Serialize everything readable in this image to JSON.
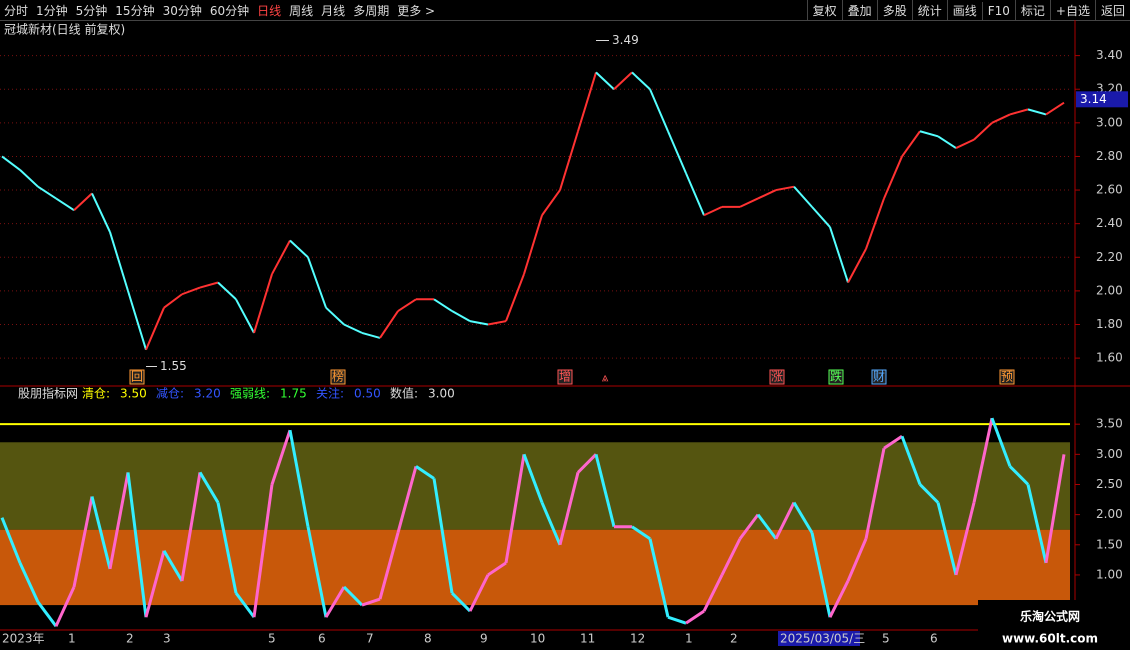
{
  "toolbar": {
    "left": [
      "分时",
      "1分钟",
      "5分钟",
      "15分钟",
      "30分钟",
      "60分钟",
      "日线",
      "周线",
      "月线",
      "多周期",
      "更多 >"
    ],
    "right": [
      "复权",
      "叠加",
      "多股",
      "统计",
      "画线",
      "F10",
      "标记",
      "+自选",
      "返回"
    ]
  },
  "chart_data": [
    {
      "type": "line",
      "title": "冠城新材(日线 前复权)",
      "ylim": [
        1.44,
        3.6
      ],
      "yticks": [
        {
          "value": 1.6,
          "label": "1.60"
        },
        {
          "value": 1.8,
          "label": "1.80"
        },
        {
          "value": 2.0,
          "label": "2.00"
        },
        {
          "value": 2.2,
          "label": "2.20"
        },
        {
          "value": 2.4,
          "label": "2.40"
        },
        {
          "value": 2.6,
          "label": "2.60"
        },
        {
          "value": 2.8,
          "label": "2.80"
        },
        {
          "value": 3.0,
          "label": "3.00"
        },
        {
          "value": 3.2,
          "label": "3.20"
        },
        {
          "value": 3.4,
          "label": "3.40"
        }
      ],
      "up_color": "#ff3232",
      "down_color": "#54ffff",
      "values": [
        2.8,
        2.72,
        2.62,
        2.55,
        2.48,
        2.58,
        2.35,
        2.0,
        1.65,
        1.9,
        1.98,
        2.02,
        2.05,
        1.95,
        1.75,
        2.1,
        2.3,
        2.2,
        1.9,
        1.8,
        1.75,
        1.72,
        1.88,
        1.95,
        1.95,
        1.88,
        1.82,
        1.8,
        1.82,
        2.1,
        2.45,
        2.6,
        2.95,
        3.3,
        3.2,
        3.3,
        3.2,
        2.95,
        2.7,
        2.45,
        2.5,
        2.5,
        2.55,
        2.6,
        2.62,
        2.5,
        2.38,
        2.05,
        2.25,
        2.55,
        2.8,
        2.95,
        2.92,
        2.85,
        2.9,
        3.0,
        3.05,
        3.08,
        3.05,
        3.12
      ],
      "high": 3.49,
      "low": 1.55,
      "last": 3.14,
      "markers": [
        "回",
        "榜",
        "增",
        "涨",
        "跌",
        "财",
        "预"
      ],
      "marker_colors": [
        "#ff9933",
        "#ff9933",
        "#ff5555",
        "#ff5555",
        "#55ff55",
        "#55aaff",
        "#ff9933"
      ]
    },
    {
      "type": "line",
      "title": "股朋指标网",
      "ylim": [
        0.12,
        4.1
      ],
      "yticks": [
        {
          "value": 1.0,
          "label": "1.00"
        },
        {
          "value": 1.5,
          "label": "1.50"
        },
        {
          "value": 2.0,
          "label": "2.00"
        },
        {
          "value": 2.5,
          "label": "2.50"
        },
        {
          "value": 3.0,
          "label": "3.00"
        },
        {
          "value": 3.5,
          "label": "3.50"
        }
      ],
      "levels": {
        "names": [
          "清仓:",
          "减仓:",
          "强弱线:",
          "关注:"
        ],
        "values": [
          3.5,
          3.2,
          1.75,
          0.5
        ],
        "value_labels": [
          "3.50",
          "3.20",
          "1.75",
          "0.50"
        ],
        "colors": [
          "#ffff00",
          "#3355ff",
          "#33ff33",
          "#3355ff"
        ]
      },
      "current_name": "数值:",
      "current_label": "3.00",
      "up_color": "#ff66cc",
      "down_color": "#33eeff",
      "values": [
        1.95,
        1.2,
        0.55,
        0.15,
        0.8,
        2.3,
        1.1,
        2.7,
        0.3,
        1.4,
        0.9,
        2.7,
        2.2,
        0.7,
        0.3,
        2.5,
        3.4,
        1.8,
        0.3,
        0.8,
        0.5,
        0.6,
        1.7,
        2.8,
        2.6,
        0.7,
        0.4,
        1.0,
        1.2,
        3.0,
        2.2,
        1.5,
        2.7,
        3.0,
        1.8,
        1.8,
        1.6,
        0.3,
        0.2,
        0.4,
        1.0,
        1.6,
        2.0,
        1.6,
        2.2,
        1.7,
        0.3,
        0.9,
        1.6,
        3.1,
        3.3,
        2.5,
        2.2,
        1.0,
        2.2,
        3.6,
        2.8,
        2.5,
        1.2,
        3.0
      ]
    }
  ],
  "x_labels": [
    "2023年",
    "1",
    "2",
    "3",
    "5",
    "6",
    "7",
    "8",
    "9",
    "10",
    "11",
    "12",
    "1",
    "2",
    "2025/03/05/三",
    "5",
    "6"
  ],
  "watermark": {
    "name": "乐淘公式网",
    "url": "www.60lt.com"
  }
}
